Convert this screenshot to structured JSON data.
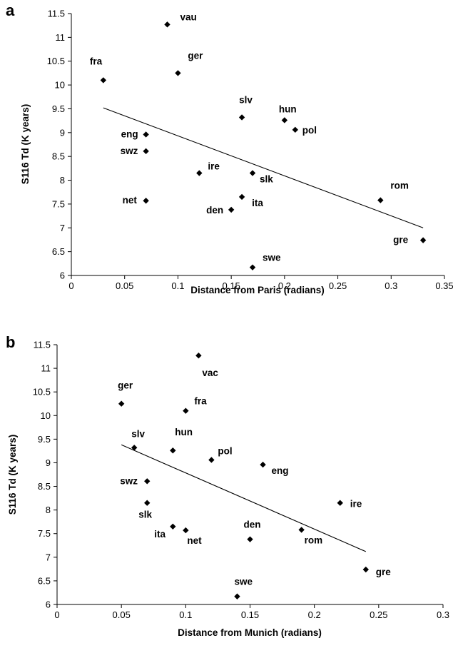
{
  "chart_data": [
    {
      "type": "scatter",
      "panel_label": "a",
      "xlabel": "Distance from Paris (radians)",
      "ylabel": "S116 Td (K years)",
      "xlim": [
        0,
        0.35
      ],
      "ylim": [
        6,
        11.5
      ],
      "xticks": [
        "0",
        "0.05",
        "0.1",
        "0.15",
        "0.2",
        "0.25",
        "0.3",
        "0.35"
      ],
      "yticks": [
        "6",
        "6.5",
        "7",
        "7.5",
        "8",
        "8.5",
        "9",
        "9.5",
        "10",
        "10.5",
        "11",
        "11.5"
      ],
      "grid": false,
      "points": [
        {
          "label": "vau",
          "x": 0.09,
          "y": 11.27
        },
        {
          "label": "fra",
          "x": 0.03,
          "y": 10.1
        },
        {
          "label": "ger",
          "x": 0.1,
          "y": 10.25
        },
        {
          "label": "slv",
          "x": 0.16,
          "y": 9.32
        },
        {
          "label": "hun",
          "x": 0.2,
          "y": 9.26
        },
        {
          "label": "pol",
          "x": 0.21,
          "y": 9.06
        },
        {
          "label": "eng",
          "x": 0.07,
          "y": 8.96
        },
        {
          "label": "swz",
          "x": 0.07,
          "y": 8.61
        },
        {
          "label": "ire",
          "x": 0.12,
          "y": 8.15
        },
        {
          "label": "slk",
          "x": 0.17,
          "y": 8.15
        },
        {
          "label": "ita",
          "x": 0.16,
          "y": 7.65
        },
        {
          "label": "net",
          "x": 0.07,
          "y": 7.57
        },
        {
          "label": "den",
          "x": 0.15,
          "y": 7.38
        },
        {
          "label": "rom",
          "x": 0.29,
          "y": 7.58
        },
        {
          "label": "gre",
          "x": 0.33,
          "y": 6.74
        },
        {
          "label": "swe",
          "x": 0.17,
          "y": 6.17
        }
      ],
      "trendline": {
        "x": [
          0.03,
          0.33
        ],
        "y": [
          9.52,
          7.0
        ]
      }
    },
    {
      "type": "scatter",
      "panel_label": "b",
      "xlabel": "Distance from Munich (radians)",
      "ylabel": "S116 Td (K years)",
      "xlim": [
        0,
        0.3
      ],
      "ylim": [
        6,
        11.5
      ],
      "xticks": [
        "0",
        "0.05",
        "0.1",
        "0.15",
        "0.2",
        "0.25",
        "0.3"
      ],
      "yticks": [
        "6",
        "6.5",
        "7",
        "7.5",
        "8",
        "8.5",
        "9",
        "9.5",
        "10",
        "10.5",
        "11",
        "11.5"
      ],
      "grid": false,
      "points": [
        {
          "label": "vac",
          "x": 0.11,
          "y": 11.27
        },
        {
          "label": "ger",
          "x": 0.05,
          "y": 10.25
        },
        {
          "label": "fra",
          "x": 0.1,
          "y": 10.1
        },
        {
          "label": "slv",
          "x": 0.06,
          "y": 9.32
        },
        {
          "label": "hun",
          "x": 0.09,
          "y": 9.26
        },
        {
          "label": "pol",
          "x": 0.12,
          "y": 9.06
        },
        {
          "label": "eng",
          "x": 0.16,
          "y": 8.96
        },
        {
          "label": "swz",
          "x": 0.07,
          "y": 8.61
        },
        {
          "label": "slk",
          "x": 0.07,
          "y": 8.15
        },
        {
          "label": "ire",
          "x": 0.22,
          "y": 8.15
        },
        {
          "label": "ita",
          "x": 0.09,
          "y": 7.65
        },
        {
          "label": "net",
          "x": 0.1,
          "y": 7.57
        },
        {
          "label": "den",
          "x": 0.15,
          "y": 7.38
        },
        {
          "label": "rom",
          "x": 0.19,
          "y": 7.58
        },
        {
          "label": "gre",
          "x": 0.24,
          "y": 6.74
        },
        {
          "label": "swe",
          "x": 0.14,
          "y": 6.17
        }
      ],
      "trendline": {
        "x": [
          0.05,
          0.24
        ],
        "y": [
          9.38,
          7.12
        ]
      }
    }
  ]
}
